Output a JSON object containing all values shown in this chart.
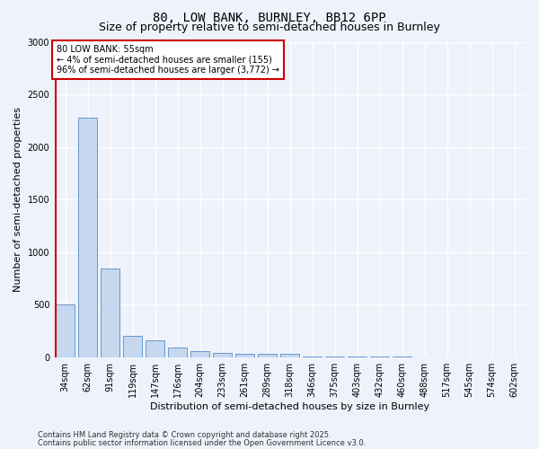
{
  "title1": "80, LOW BANK, BURNLEY, BB12 6PP",
  "title2": "Size of property relative to semi-detached houses in Burnley",
  "xlabel": "Distribution of semi-detached houses by size in Burnley",
  "ylabel": "Number of semi-detached properties",
  "categories": [
    "34sqm",
    "62sqm",
    "91sqm",
    "119sqm",
    "147sqm",
    "176sqm",
    "204sqm",
    "233sqm",
    "261sqm",
    "289sqm",
    "318sqm",
    "346sqm",
    "375sqm",
    "403sqm",
    "432sqm",
    "460sqm",
    "488sqm",
    "517sqm",
    "545sqm",
    "574sqm",
    "602sqm"
  ],
  "values": [
    500,
    2280,
    840,
    205,
    160,
    90,
    55,
    40,
    35,
    35,
    30,
    5,
    5,
    5,
    5,
    5,
    0,
    0,
    0,
    0,
    0
  ],
  "bar_color": "#c5d8f0",
  "bar_edge_color": "#6699cc",
  "property_line_color": "#cc0000",
  "property_line_x": -0.5,
  "annotation_text": "80 LOW BANK: 55sqm\n← 4% of semi-detached houses are smaller (155)\n96% of semi-detached houses are larger (3,772) →",
  "annotation_box_color": "#ffffff",
  "annotation_box_edge": "#cc0000",
  "ylim": [
    0,
    3000
  ],
  "yticks": [
    0,
    500,
    1000,
    1500,
    2000,
    2500,
    3000
  ],
  "footer1": "Contains HM Land Registry data © Crown copyright and database right 2025.",
  "footer2": "Contains public sector information licensed under the Open Government Licence v3.0.",
  "background_color": "#eef2fb",
  "grid_color": "#ffffff",
  "title_fontsize": 10,
  "subtitle_fontsize": 9,
  "axis_label_fontsize": 8,
  "tick_fontsize": 7,
  "footer_fontsize": 6
}
